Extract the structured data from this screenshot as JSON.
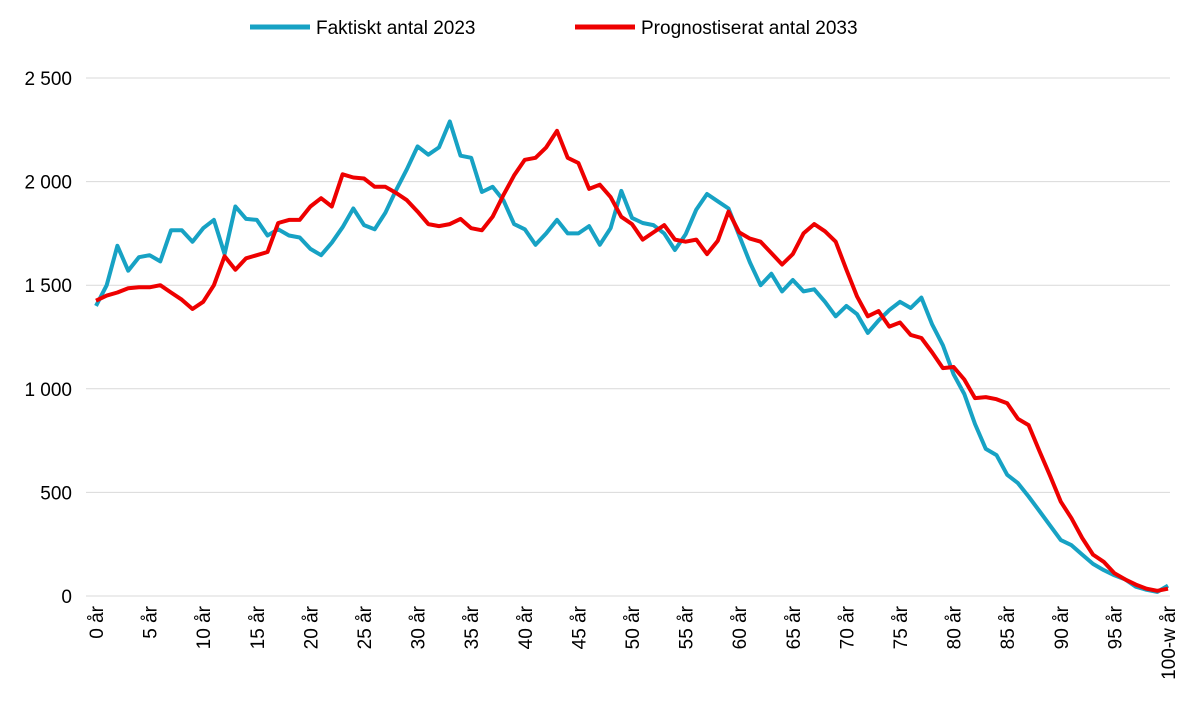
{
  "chart_data": {
    "type": "line",
    "categories": [
      "0 år",
      null,
      null,
      null,
      null,
      "5 år",
      null,
      null,
      null,
      null,
      "10 år",
      null,
      null,
      null,
      null,
      "15 år",
      null,
      null,
      null,
      null,
      "20 år",
      null,
      null,
      null,
      null,
      "25 år",
      null,
      null,
      null,
      null,
      "30 år",
      null,
      null,
      null,
      null,
      "35 år",
      null,
      null,
      null,
      null,
      "40 år",
      null,
      null,
      null,
      null,
      "45 år",
      null,
      null,
      null,
      null,
      "50 år",
      null,
      null,
      null,
      null,
      "55 år",
      null,
      null,
      null,
      null,
      "60 år",
      null,
      null,
      null,
      null,
      "65 år",
      null,
      null,
      null,
      null,
      "70 år",
      null,
      null,
      null,
      null,
      "75 år",
      null,
      null,
      null,
      null,
      "80 år",
      null,
      null,
      null,
      null,
      "85 år",
      null,
      null,
      null,
      null,
      "90 år",
      null,
      null,
      null,
      null,
      "95 år",
      null,
      null,
      null,
      null,
      "100-w år"
    ],
    "series": [
      {
        "name": "Faktiskt antal 2023",
        "color": "#17a2c4",
        "values": [
          1400,
          1500,
          1690,
          1570,
          1635,
          1645,
          1615,
          1765,
          1765,
          1710,
          1775,
          1815,
          1650,
          1880,
          1820,
          1815,
          1740,
          1770,
          1740,
          1730,
          1675,
          1645,
          1705,
          1780,
          1870,
          1790,
          1770,
          1850,
          1960,
          2060,
          2170,
          2130,
          2165,
          2290,
          2125,
          2115,
          1950,
          1975,
          1910,
          1795,
          1770,
          1695,
          1750,
          1815,
          1750,
          1750,
          1785,
          1695,
          1775,
          1955,
          1825,
          1800,
          1790,
          1750,
          1670,
          1745,
          1865,
          1940,
          1905,
          1870,
          1740,
          1610,
          1500,
          1555,
          1470,
          1525,
          1470,
          1480,
          1420,
          1350,
          1400,
          1360,
          1270,
          1330,
          1380,
          1420,
          1390,
          1440,
          1310,
          1210,
          1070,
          975,
          830,
          710,
          680,
          585,
          545,
          480,
          410,
          340,
          270,
          245,
          200,
          155,
          125,
          100,
          80,
          45,
          30,
          20,
          50
        ]
      },
      {
        "name": "Prognostiserat antal 2033",
        "color": "#ee0000",
        "values": [
          1425,
          1450,
          1465,
          1485,
          1490,
          1490,
          1500,
          1465,
          1430,
          1385,
          1420,
          1500,
          1640,
          1575,
          1630,
          1645,
          1660,
          1800,
          1815,
          1815,
          1880,
          1920,
          1880,
          2035,
          2020,
          2015,
          1975,
          1975,
          1945,
          1910,
          1855,
          1795,
          1785,
          1795,
          1820,
          1775,
          1765,
          1830,
          1935,
          2030,
          2105,
          2115,
          2165,
          2245,
          2115,
          2090,
          1965,
          1985,
          1925,
          1830,
          1795,
          1720,
          1755,
          1790,
          1720,
          1710,
          1720,
          1650,
          1715,
          1855,
          1755,
          1725,
          1710,
          1655,
          1600,
          1650,
          1750,
          1795,
          1760,
          1710,
          1575,
          1445,
          1350,
          1375,
          1300,
          1320,
          1260,
          1245,
          1175,
          1100,
          1105,
          1045,
          955,
          960,
          950,
          930,
          855,
          825,
          700,
          580,
          455,
          375,
          280,
          200,
          165,
          110,
          80,
          55,
          35,
          25,
          35
        ]
      }
    ],
    "ylim": [
      0,
      2500
    ],
    "yticks": [
      0,
      500,
      {
        "value": 1000,
        "label": "1 000"
      },
      {
        "value": 1500,
        "label": "1 500"
      },
      {
        "value": 2000,
        "label": "2 000"
      },
      {
        "value": 2500,
        "label": "2 500"
      }
    ],
    "grid": true,
    "legend": "top"
  }
}
